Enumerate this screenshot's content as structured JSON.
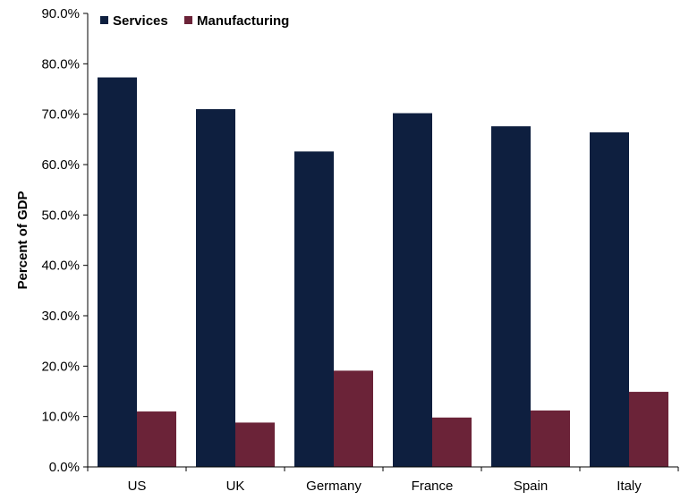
{
  "chart_data": {
    "type": "bar",
    "title": "",
    "xlabel": "",
    "ylabel": "Percent of GDP",
    "categories": [
      "US",
      "UK",
      "Germany",
      "France",
      "Spain",
      "Italy"
    ],
    "series": [
      {
        "name": "Services",
        "values": [
          77.3,
          71.0,
          62.6,
          70.2,
          67.6,
          66.4
        ],
        "color": "#0e1f3f"
      },
      {
        "name": "Manufacturing",
        "values": [
          11.0,
          8.8,
          19.1,
          9.8,
          11.2,
          14.9
        ],
        "color": "#6b2338"
      }
    ],
    "ylim": [
      0,
      90
    ],
    "yticks": [
      "0.0%",
      "10.0%",
      "20.0%",
      "30.0%",
      "40.0%",
      "50.0%",
      "60.0%",
      "70.0%",
      "80.0%",
      "90.0%"
    ],
    "grid": false,
    "legend_position": "top-left"
  }
}
